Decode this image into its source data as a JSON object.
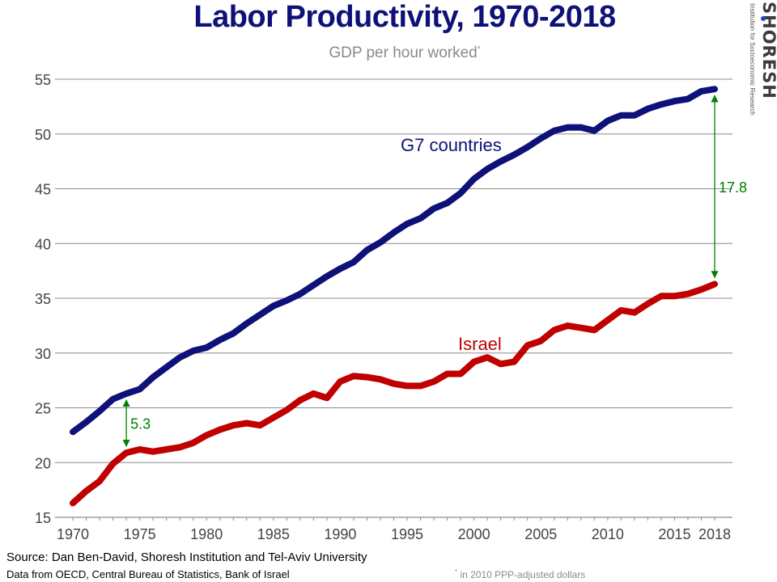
{
  "header": {
    "title": "Labor Productivity, 1970-2018",
    "subtitle": "GDP per hour worked",
    "subtitle_mark": "*"
  },
  "logo": {
    "name": "SHORESH",
    "tagline": "Institution for Socioeconomic Research"
  },
  "chart_data": {
    "type": "line",
    "title": "Labor Productivity, 1970-2018",
    "subtitle": "GDP per hour worked*",
    "xlabel": "",
    "ylabel": "",
    "xlim": [
      1970,
      2018
    ],
    "ylim": [
      15,
      55
    ],
    "xticks": [
      1970,
      1975,
      1980,
      1985,
      1990,
      1995,
      2000,
      2005,
      2010,
      2015,
      2018
    ],
    "yticks": [
      15,
      20,
      25,
      30,
      35,
      40,
      45,
      50,
      55
    ],
    "grid": "horizontal",
    "x": [
      1970,
      1971,
      1972,
      1973,
      1974,
      1975,
      1976,
      1977,
      1978,
      1979,
      1980,
      1981,
      1982,
      1983,
      1984,
      1985,
      1986,
      1987,
      1988,
      1989,
      1990,
      1991,
      1992,
      1993,
      1994,
      1995,
      1996,
      1997,
      1998,
      1999,
      2000,
      2001,
      2002,
      2003,
      2004,
      2005,
      2006,
      2007,
      2008,
      2009,
      2010,
      2011,
      2012,
      2013,
      2014,
      2015,
      2016,
      2017,
      2018
    ],
    "series": [
      {
        "name": "G7 countries",
        "color": "#0d1178",
        "values": [
          22.8,
          23.7,
          24.7,
          25.8,
          26.3,
          26.7,
          27.8,
          28.7,
          29.6,
          30.2,
          30.5,
          31.2,
          31.8,
          32.7,
          33.5,
          34.3,
          34.8,
          35.4,
          36.2,
          37.0,
          37.7,
          38.3,
          39.4,
          40.1,
          41.0,
          41.8,
          42.3,
          43.2,
          43.7,
          44.6,
          45.9,
          46.8,
          47.5,
          48.1,
          48.8,
          49.6,
          50.3,
          50.6,
          50.6,
          50.3,
          51.2,
          51.7,
          51.7,
          52.3,
          52.7,
          53.0,
          53.2,
          53.9,
          54.1
        ]
      },
      {
        "name": "Israel",
        "color": "#c00000",
        "values": [
          16.3,
          17.4,
          18.3,
          19.9,
          20.9,
          21.2,
          21.0,
          21.2,
          21.4,
          21.8,
          22.5,
          23.0,
          23.4,
          23.6,
          23.4,
          24.1,
          24.8,
          25.7,
          26.3,
          25.9,
          27.4,
          27.9,
          27.8,
          27.6,
          27.2,
          27.0,
          27.0,
          27.4,
          28.1,
          28.1,
          29.2,
          29.6,
          29.0,
          29.2,
          30.7,
          31.1,
          32.1,
          32.5,
          32.3,
          32.1,
          33.0,
          33.9,
          33.7,
          34.5,
          35.2,
          35.2,
          35.4,
          35.8,
          36.3
        ]
      }
    ],
    "series_labels": [
      "G7 countries",
      "Israel"
    ],
    "annotations": [
      {
        "label": "5.3",
        "x": 1974,
        "y_from": 20.9,
        "y_to": 26.3,
        "color": "#008000"
      },
      {
        "label": "17.8",
        "x": 2018,
        "y_from": 36.3,
        "y_to": 54.1,
        "color": "#008000"
      }
    ]
  },
  "footer": {
    "source": "Source: Dan Ben-David, Shoresh Institution and Tel-Aviv University",
    "data": "Data from OECD, Central Bureau of Statistics, Bank of Israel",
    "note_mark": "*",
    "note": " in 2010 PPP-adjusted dollars"
  }
}
